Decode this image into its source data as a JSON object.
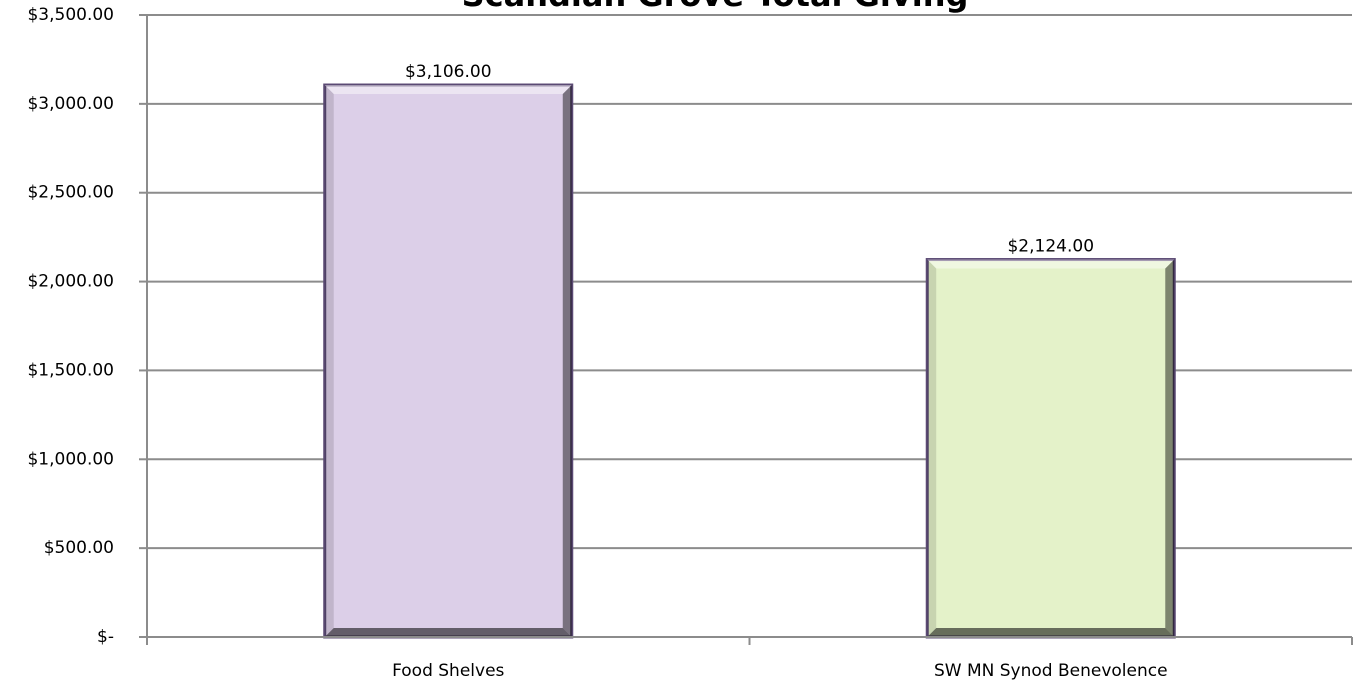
{
  "chart_data": {
    "type": "bar",
    "title": "Scandian Grove Total Giving",
    "categories": [
      "Food Shelves",
      "SW MN Synod Benevolence"
    ],
    "values": [
      3106,
      2124
    ],
    "value_labels": [
      "$3,106.00",
      "$2,124.00"
    ],
    "colors": [
      "#dccfe8",
      "#e4f2c9"
    ],
    "ylim": [
      0,
      3500
    ],
    "yticks": [
      {
        "value": 0,
        "label": "$-"
      },
      {
        "value": 500,
        "label": "$500.00"
      },
      {
        "value": 1000,
        "label": "$1,000.00"
      },
      {
        "value": 1500,
        "label": "$1,500.00"
      },
      {
        "value": 2000,
        "label": "$2,000.00"
      },
      {
        "value": 2500,
        "label": "$2,500.00"
      },
      {
        "value": 3000,
        "label": "$3,000.00"
      },
      {
        "value": 3500,
        "label": "$3,500.00"
      }
    ],
    "grid": true
  }
}
